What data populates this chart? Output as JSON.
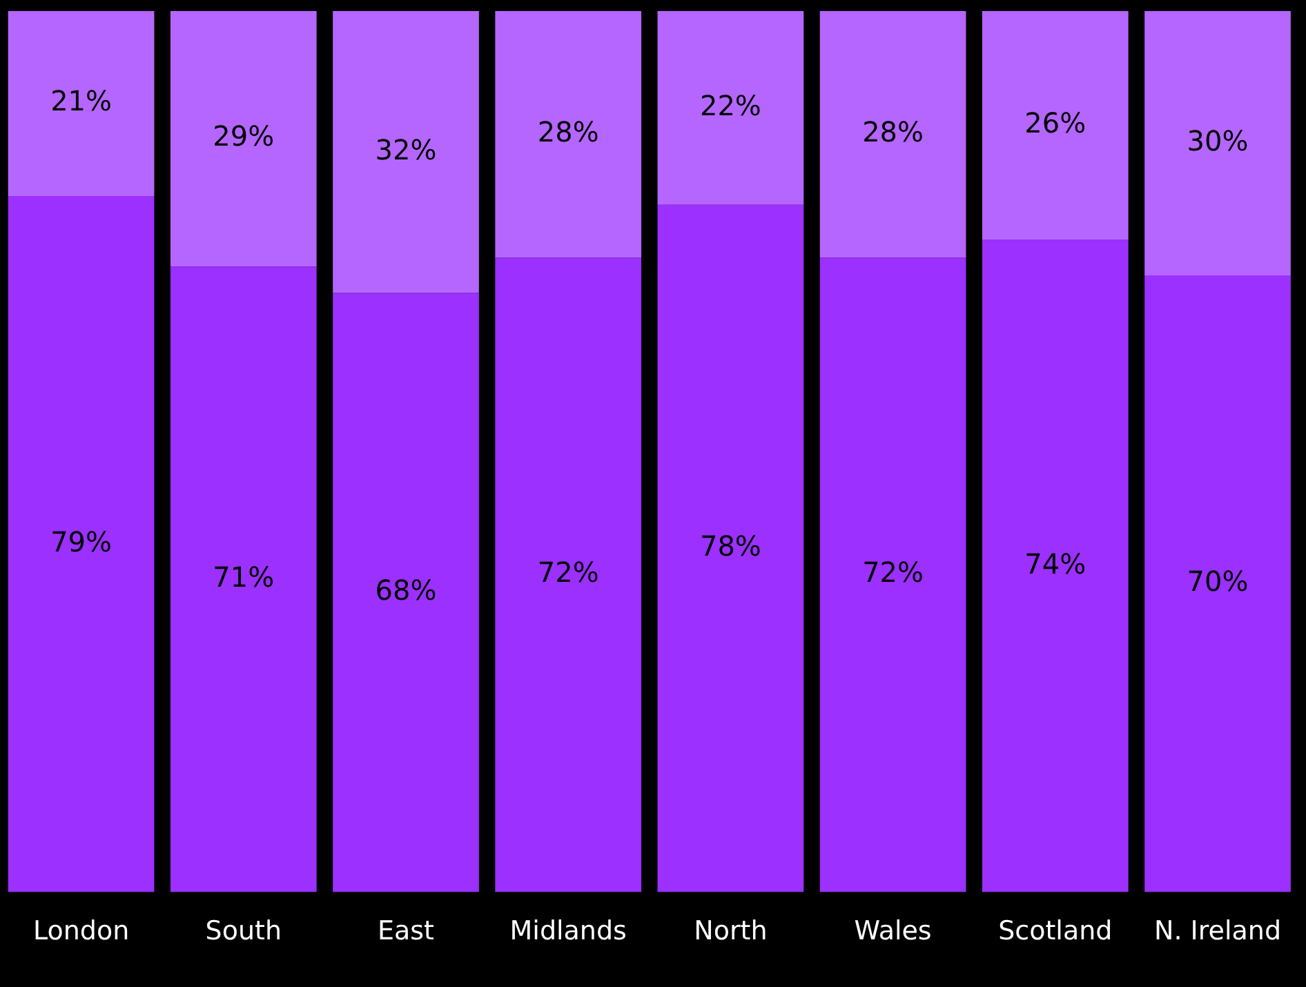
{
  "chart_data": {
    "type": "bar",
    "stacked": true,
    "categories": [
      "London",
      "South",
      "East",
      "Midlands",
      "North",
      "Wales",
      "Scotland",
      "N. Ireland"
    ],
    "series": [
      {
        "color": "#9b30ff",
        "values": [
          79,
          71,
          68,
          72,
          78,
          72,
          74,
          70
        ],
        "value_labels": [
          "79%",
          "71%",
          "68%",
          "72%",
          "78%",
          "72%",
          "74%",
          "70%"
        ]
      },
      {
        "color": "#b566ff",
        "values": [
          21,
          29,
          32,
          28,
          22,
          28,
          26,
          30
        ],
        "value_labels": [
          "21%",
          "29%",
          "32%",
          "28%",
          "22%",
          "28%",
          "26%",
          "30%"
        ]
      }
    ],
    "tick_labels": "x"
  }
}
